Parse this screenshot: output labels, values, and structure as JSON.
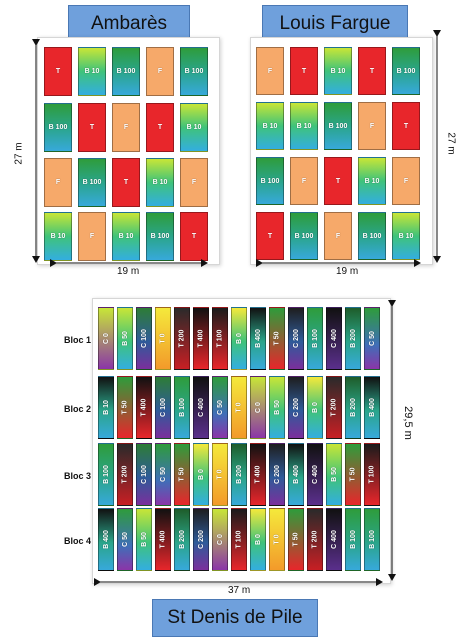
{
  "colors": {
    "T": "#e8262b",
    "F": "#f6a96a",
    "B10": "linear-gradient(180deg,#c8e637 0%,#3fc37a 50%,#33aee0 100%)",
    "B100": "linear-gradient(180deg,#2e9c3b 0%,#2aa58a 50%,#37a9db 100%)",
    "C": "linear-gradient(180deg,#2d7d36 0%,#2f5b9a 55%,#7b2f9c 100%)",
    "title_bg": "#6fa0dc"
  },
  "sites": [
    {
      "title": "Ambarès",
      "width_label": "19 m",
      "height_label": "27 m",
      "rows": [
        [
          "T",
          "B 10",
          "B 100",
          "F",
          "B 100"
        ],
        [
          "B 100",
          "T",
          "F",
          "T",
          "B 10"
        ],
        [
          "F",
          "B 100",
          "T",
          "B 10",
          "F"
        ],
        [
          "B 10",
          "F",
          "B 10",
          "B 100",
          "T"
        ]
      ]
    },
    {
      "title": "Louis Fargue",
      "width_label": "19 m",
      "height_label": "27 m",
      "rows": [
        [
          "F",
          "T",
          "B 10",
          "T",
          "B 100"
        ],
        [
          "B 10",
          "B 10",
          "B 100",
          "F",
          "T"
        ],
        [
          "B 100",
          "F",
          "T",
          "B 10",
          "F"
        ],
        [
          "T",
          "B 100",
          "F",
          "B 100",
          "B 10"
        ]
      ]
    },
    {
      "title": "St Denis de Pile",
      "width_label": "37 m",
      "height_label": "29,5 m",
      "blocs": [
        {
          "label": "Bloc 1",
          "plots": [
            "C 0",
            "B 50",
            "C 100",
            "T 0",
            "T 200",
            "T 400",
            "T 100",
            "B 0",
            "B 400",
            "T 50",
            "C 200",
            "B 100",
            "C 400",
            "B 200",
            "C 50"
          ]
        },
        {
          "label": "Bloc 2",
          "plots": [
            "B 10",
            "T 50",
            "T 400",
            "C 100",
            "B 100",
            "C 400",
            "C 50",
            "T 0",
            "C 0",
            "B 50",
            "C 200",
            "B 0",
            "T 200",
            "B 200",
            "B 400"
          ]
        },
        {
          "label": "Bloc 3",
          "plots": [
            "B 100",
            "T 200",
            "C 100",
            "C 50",
            "T 50",
            "B 0",
            "T 0",
            "B 200",
            "T 400",
            "C 200",
            "B 400",
            "C 400",
            "B 50",
            "T 50",
            "T 100"
          ]
        },
        {
          "label": "Bloc 4",
          "plots": [
            "B 400",
            "C 50",
            "B 50",
            "T 400",
            "B 200",
            "C 200",
            "C 0",
            "T 100",
            "B 0",
            "T 0",
            "T 50",
            "T 200",
            "C 400",
            "B 100",
            "B 100"
          ]
        }
      ]
    }
  ]
}
